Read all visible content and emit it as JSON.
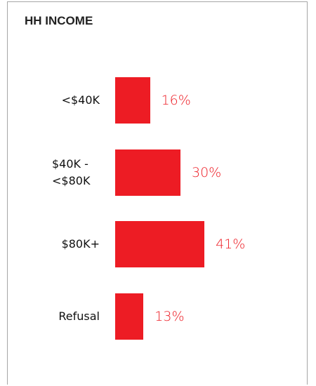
{
  "chart_data": {
    "type": "bar",
    "orientation": "horizontal",
    "title": "HH INCOME",
    "categories": [
      "<$40K",
      "$40K - <$80K",
      "$80K+",
      "Refusal"
    ],
    "values": [
      16,
      30,
      41,
      13
    ],
    "value_labels": [
      "16%",
      "30%",
      "41%",
      "13%"
    ],
    "color": "#ed1c24"
  }
}
